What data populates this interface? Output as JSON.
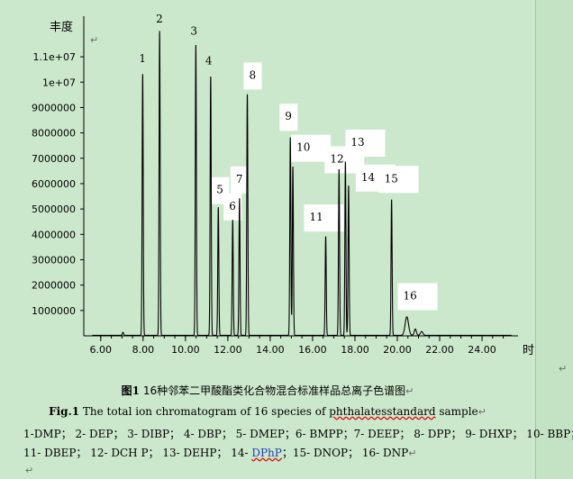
{
  "chart_data": {
    "type": "line",
    "ylabel": "丰度",
    "xlabel": "时间",
    "x_ticks": [
      "6.00",
      "8.00",
      "10.00",
      "12.00",
      "14.00",
      "16.00",
      "18.00",
      "20.00",
      "22.00",
      "24.00"
    ],
    "y_ticks": [
      "1000000",
      "2000000",
      "3000000",
      "4000000",
      "5000000",
      "6000000",
      "7000000",
      "8000000",
      "9000000",
      "1e+07",
      "1.1e+07"
    ],
    "xlim": [
      5.2,
      25.7
    ],
    "ylim": [
      0,
      12600000
    ],
    "peaks": [
      {
        "label": "1",
        "x": 7.98,
        "y": 10300000
      },
      {
        "label": "2",
        "x": 8.78,
        "y": 12000000
      },
      {
        "label": "3",
        "x": 10.49,
        "y": 11450000
      },
      {
        "label": "4",
        "x": 11.19,
        "y": 10200000
      },
      {
        "label": "5",
        "x": 11.55,
        "y": 5050000
      },
      {
        "label": "6",
        "x": 12.23,
        "y": 4550000
      },
      {
        "label": "7",
        "x": 12.55,
        "y": 5400000
      },
      {
        "label": "8",
        "x": 12.92,
        "y": 9500000
      },
      {
        "label": "9",
        "x": 14.95,
        "y": 7800000
      },
      {
        "label": "10",
        "x": 15.07,
        "y": 6650000
      },
      {
        "label": "11",
        "x": 16.62,
        "y": 3900000
      },
      {
        "label": "12",
        "x": 17.25,
        "y": 6550000
      },
      {
        "label": "13",
        "x": 17.55,
        "y": 6850000
      },
      {
        "label": "14",
        "x": 17.7,
        "y": 5900000
      },
      {
        "label": "15",
        "x": 19.73,
        "y": 5350000
      },
      {
        "label": "16",
        "x": 20.45,
        "y": 730000
      }
    ]
  },
  "caption": {
    "fig_cn_prefix": "图1",
    "fig_cn_text": " 16种邻苯二甲酸酯类化合物混合标准样品总离子色谱图",
    "fig_en_prefix": "Fig.1",
    "fig_en_text": " The total  ion chromatogram  of 16 species of ",
    "fig_en_squiggle": "phthalatesstandard",
    "fig_en_tail": "  sample"
  },
  "legend": {
    "line1": "1-DMP；  2- DEP；  3- DIBP；  4- DBP；  5- DMEP；6- BMPP；7- DEEP；  8- DPP；  9- DHXP；  10- BBP；",
    "line2_a": "11- DBEP；   12- DCH P；   13- DEHP；   14- ",
    "line2_dphp": "DPhP",
    "line2_b": "；15- DNOP；   16- DNP"
  }
}
